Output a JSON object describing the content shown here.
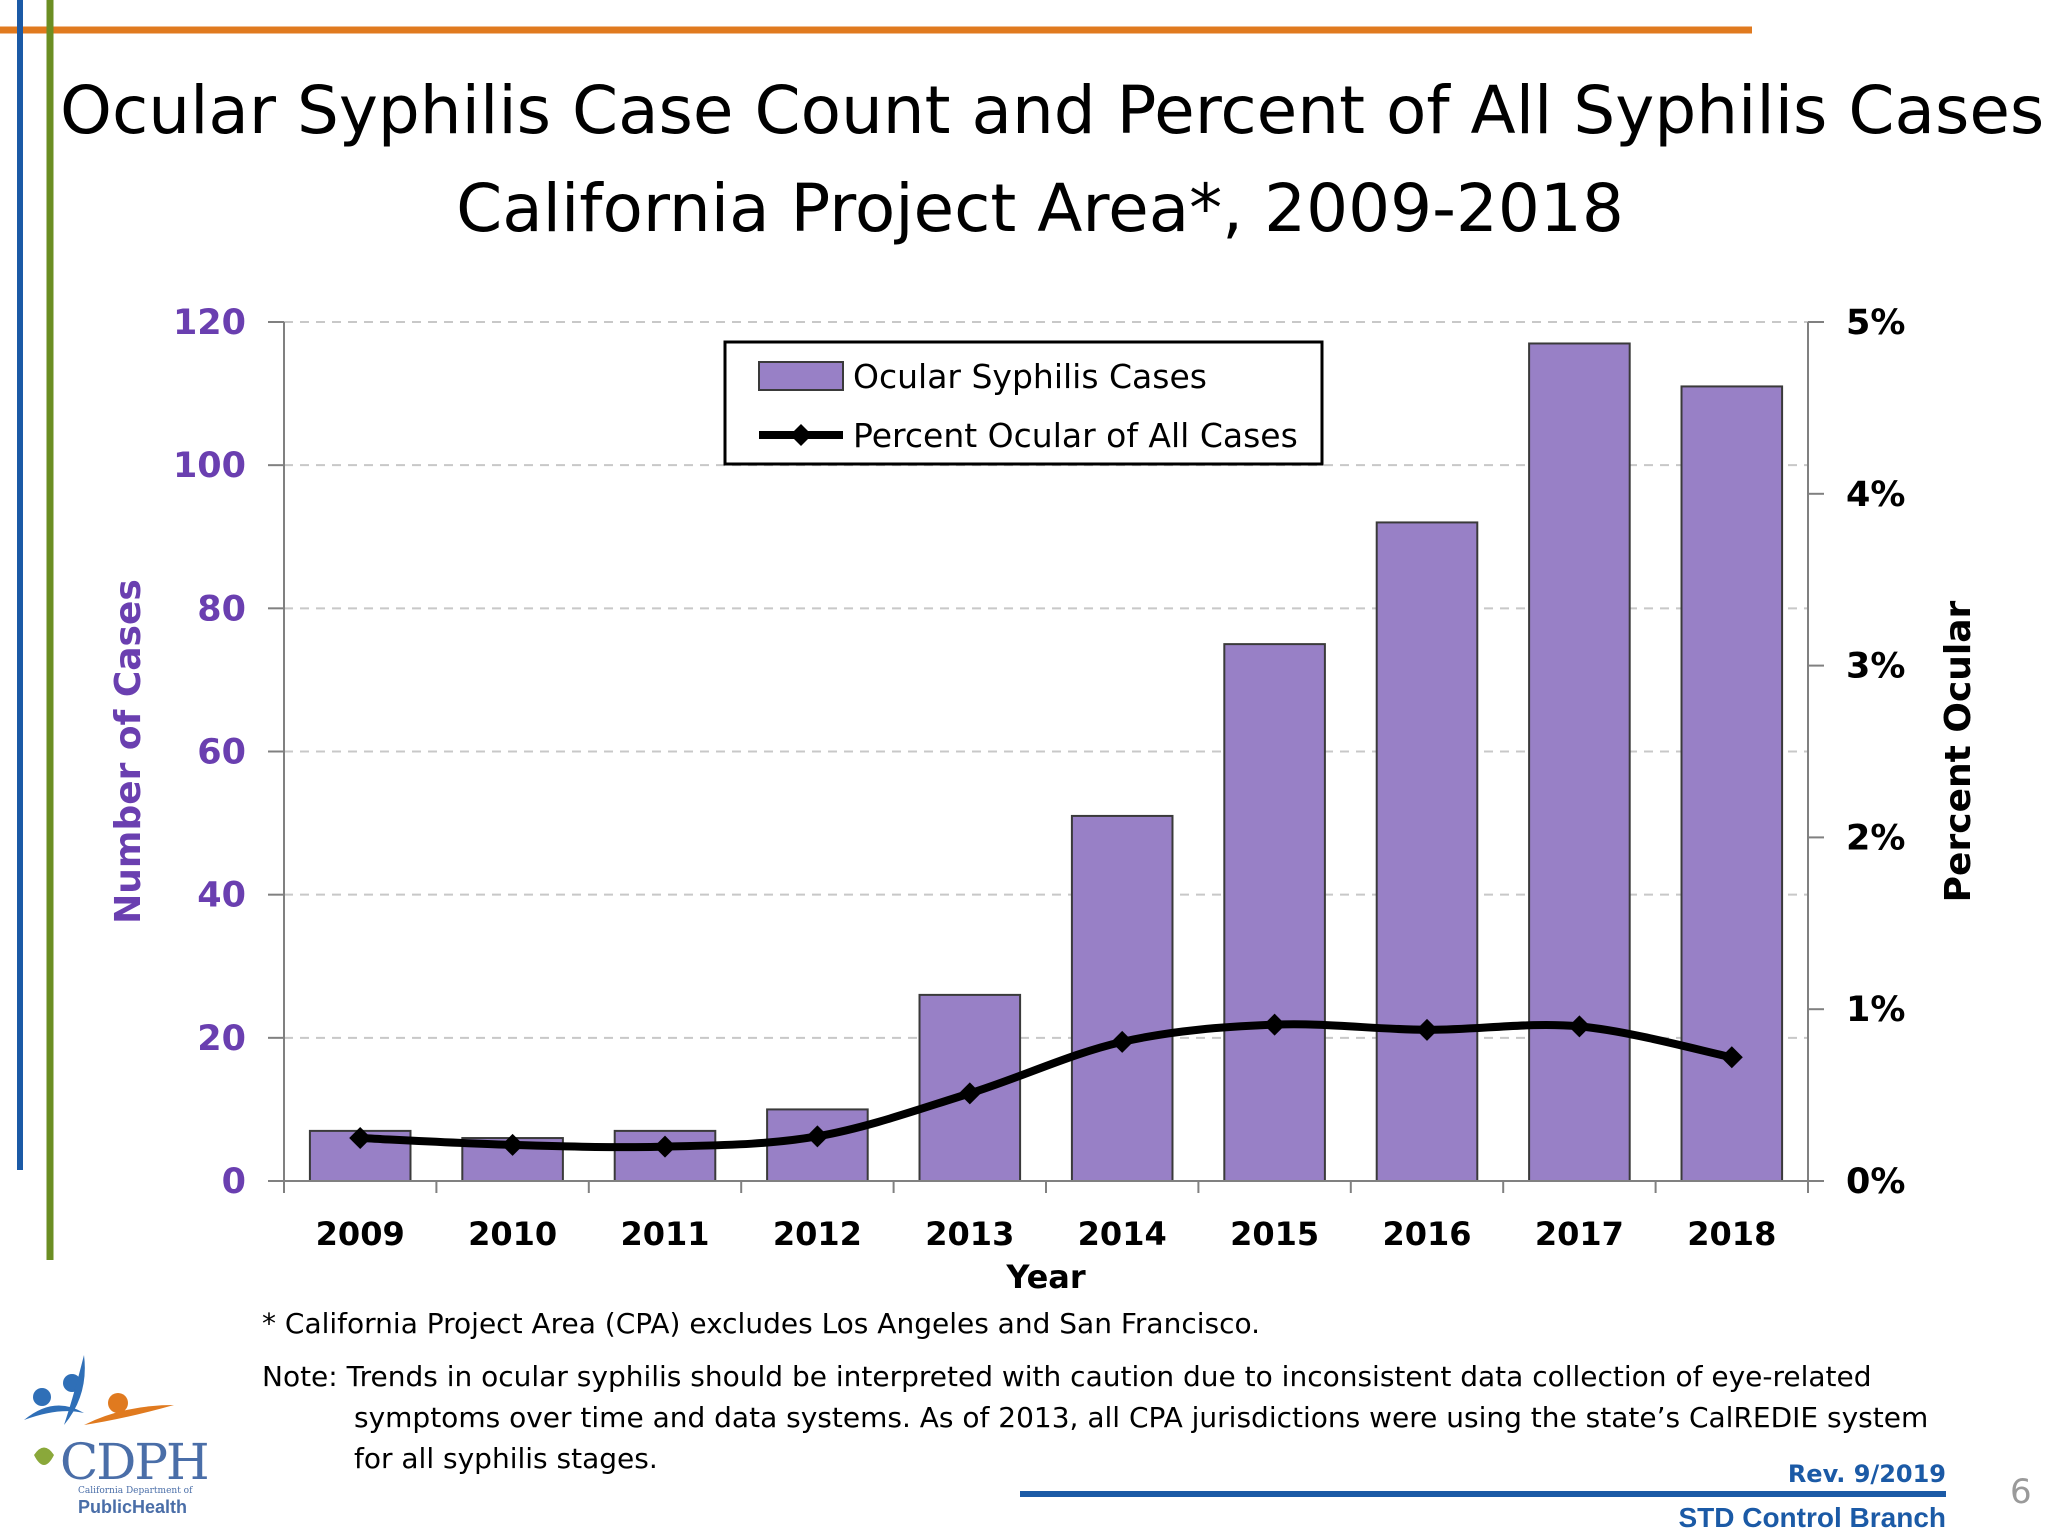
{
  "slide": {
    "title_line1": "Ocular Syphilis Case Count and Percent of All Syphilis Cases",
    "title_line2": "California Project Area*, 2009-2018",
    "footnote": "* California Project Area (CPA) excludes Los Angeles and San Francisco.",
    "note": "Note:  Trends in ocular syphilis should be interpreted with caution due to inconsistent data collection of eye-related symptoms over time and data systems.  As of 2013, all CPA jurisdictions were using the state’s CalREDIE system for all syphilis stages.",
    "revision": "Rev. 9/2019",
    "branch": "STD Control Branch",
    "page_number": "6",
    "logo": {
      "name": "CDPH",
      "subtitle": "California Department of",
      "tagline": "PublicHealth"
    },
    "colors": {
      "orange_rule": "#e07a1f",
      "blue_rule": "#1b5aa6",
      "green_rule": "#6b8e23"
    }
  },
  "chart_data": {
    "type": "bar",
    "categories": [
      "2009",
      "2010",
      "2011",
      "2012",
      "2013",
      "2014",
      "2015",
      "2016",
      "2017",
      "2018"
    ],
    "series": [
      {
        "name": "Ocular Syphilis Cases",
        "type": "bar",
        "axis": "left",
        "color": "#9880c6",
        "values": [
          7,
          6,
          7,
          10,
          26,
          51,
          75,
          92,
          117,
          111
        ]
      },
      {
        "name": "Percent Ocular of All Cases",
        "type": "line",
        "axis": "right",
        "color": "#000000",
        "marker": "diamond",
        "values": [
          0.25,
          0.21,
          0.2,
          0.26,
          0.51,
          0.81,
          0.91,
          0.88,
          0.9,
          0.72
        ]
      }
    ],
    "xlabel": "Year",
    "ylabel": "Number of Cases",
    "ylabel_right": "Percent Ocular",
    "ylim": [
      0,
      120
    ],
    "ylim_right": [
      0,
      5
    ],
    "yticks": [
      "0",
      "20",
      "40",
      "60",
      "80",
      "100",
      "120"
    ],
    "yticks_right": [
      "0%",
      "1%",
      "2%",
      "3%",
      "4%",
      "5%"
    ],
    "left_axis_color": "#6a3fb0",
    "grid": "dashed horizontal",
    "legend_position": "top-center"
  }
}
